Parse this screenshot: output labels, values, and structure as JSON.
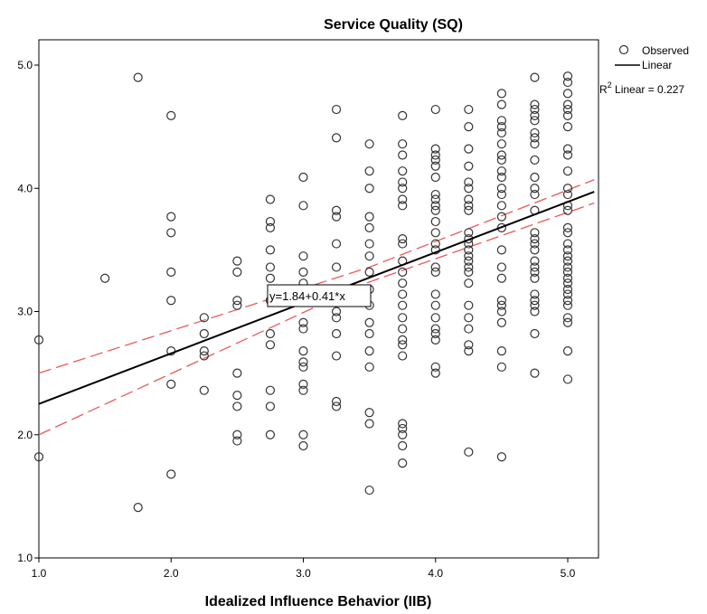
{
  "chart_data": {
    "type": "scatter",
    "title": "Service Quality (SQ)",
    "xlabel": "Idealized Influence Behavior (IIB)",
    "ylabel": "",
    "xlim": [
      1.0,
      5.2
    ],
    "ylim": [
      1.0,
      5.2
    ],
    "x_ticks": [
      "1.0",
      "2.0",
      "3.0",
      "4.0",
      "5.0"
    ],
    "y_ticks": [
      "1.0",
      "2.0",
      "3.0",
      "4.0",
      "5.0"
    ],
    "grid": false,
    "legend": {
      "placement": "top-right",
      "observed_label": "Observed",
      "linear_label": "Linear",
      "r2_prefix": "R",
      "r2_sup": "2",
      "r2_text": " Linear = 0.227"
    },
    "fit_equation": "y=1.84+0.41*x",
    "fit": {
      "intercept": 1.84,
      "slope": 0.41,
      "r2": 0.227
    },
    "ci_lower": [
      [
        1.0,
        2.0
      ],
      [
        3.5,
        3.24
      ],
      [
        5.2,
        3.88
      ]
    ],
    "ci_upper": [
      [
        1.0,
        2.5
      ],
      [
        3.5,
        3.36
      ],
      [
        5.2,
        4.07
      ]
    ],
    "colors": {
      "points": "#333333",
      "fit": "#000000",
      "ci": "#e85a5a"
    },
    "points": [
      [
        1.0,
        2.77
      ],
      [
        1.0,
        1.82
      ],
      [
        1.5,
        3.27
      ],
      [
        1.75,
        4.9
      ],
      [
        1.75,
        1.41
      ],
      [
        2.0,
        4.59
      ],
      [
        2.0,
        3.77
      ],
      [
        2.0,
        3.64
      ],
      [
        2.0,
        3.32
      ],
      [
        2.0,
        3.09
      ],
      [
        2.0,
        2.68
      ],
      [
        2.0,
        2.41
      ],
      [
        2.0,
        1.68
      ],
      [
        2.25,
        2.95
      ],
      [
        2.25,
        2.82
      ],
      [
        2.25,
        2.68
      ],
      [
        2.25,
        2.64
      ],
      [
        2.25,
        2.36
      ],
      [
        2.5,
        3.41
      ],
      [
        2.5,
        3.32
      ],
      [
        2.5,
        3.09
      ],
      [
        2.5,
        3.05
      ],
      [
        2.5,
        2.5
      ],
      [
        2.5,
        2.32
      ],
      [
        2.5,
        2.23
      ],
      [
        2.5,
        2.0
      ],
      [
        2.5,
        1.95
      ],
      [
        2.75,
        3.91
      ],
      [
        2.75,
        3.73
      ],
      [
        2.75,
        3.68
      ],
      [
        2.75,
        3.5
      ],
      [
        2.75,
        3.36
      ],
      [
        2.75,
        3.27
      ],
      [
        2.75,
        3.09
      ],
      [
        2.75,
        2.82
      ],
      [
        2.75,
        2.73
      ],
      [
        2.75,
        2.36
      ],
      [
        2.75,
        2.23
      ],
      [
        2.75,
        2.0
      ],
      [
        3.0,
        4.09
      ],
      [
        3.0,
        3.86
      ],
      [
        3.0,
        3.45
      ],
      [
        3.0,
        3.32
      ],
      [
        3.0,
        3.23
      ],
      [
        3.0,
        3.14
      ],
      [
        3.0,
        2.91
      ],
      [
        3.0,
        2.86
      ],
      [
        3.0,
        2.68
      ],
      [
        3.0,
        2.59
      ],
      [
        3.0,
        2.55
      ],
      [
        3.0,
        2.41
      ],
      [
        3.0,
        2.36
      ],
      [
        3.0,
        2.0
      ],
      [
        3.0,
        1.91
      ],
      [
        3.25,
        4.64
      ],
      [
        3.25,
        4.41
      ],
      [
        3.25,
        3.82
      ],
      [
        3.25,
        3.77
      ],
      [
        3.25,
        3.55
      ],
      [
        3.25,
        3.36
      ],
      [
        3.25,
        3.14
      ],
      [
        3.25,
        3.0
      ],
      [
        3.25,
        2.95
      ],
      [
        3.25,
        2.82
      ],
      [
        3.25,
        2.64
      ],
      [
        3.25,
        2.27
      ],
      [
        3.25,
        2.23
      ],
      [
        3.5,
        4.36
      ],
      [
        3.5,
        4.14
      ],
      [
        3.5,
        4.0
      ],
      [
        3.5,
        3.77
      ],
      [
        3.5,
        3.68
      ],
      [
        3.5,
        3.55
      ],
      [
        3.5,
        3.45
      ],
      [
        3.5,
        3.32
      ],
      [
        3.5,
        3.18
      ],
      [
        3.5,
        3.05
      ],
      [
        3.5,
        2.91
      ],
      [
        3.5,
        2.82
      ],
      [
        3.5,
        2.68
      ],
      [
        3.5,
        2.55
      ],
      [
        3.5,
        2.18
      ],
      [
        3.5,
        2.09
      ],
      [
        3.5,
        1.55
      ],
      [
        3.75,
        4.59
      ],
      [
        3.75,
        4.36
      ],
      [
        3.75,
        4.27
      ],
      [
        3.75,
        4.14
      ],
      [
        3.75,
        4.05
      ],
      [
        3.75,
        4.0
      ],
      [
        3.75,
        3.91
      ],
      [
        3.75,
        3.86
      ],
      [
        3.75,
        3.59
      ],
      [
        3.75,
        3.55
      ],
      [
        3.75,
        3.41
      ],
      [
        3.75,
        3.32
      ],
      [
        3.75,
        3.23
      ],
      [
        3.75,
        3.14
      ],
      [
        3.75,
        3.05
      ],
      [
        3.75,
        2.95
      ],
      [
        3.75,
        2.86
      ],
      [
        3.75,
        2.77
      ],
      [
        3.75,
        2.73
      ],
      [
        3.75,
        2.64
      ],
      [
        3.75,
        2.09
      ],
      [
        3.75,
        2.05
      ],
      [
        3.75,
        2.0
      ],
      [
        3.75,
        1.91
      ],
      [
        3.75,
        1.77
      ],
      [
        4.0,
        4.64
      ],
      [
        4.0,
        4.32
      ],
      [
        4.0,
        4.27
      ],
      [
        4.0,
        4.23
      ],
      [
        4.0,
        4.18
      ],
      [
        4.0,
        4.09
      ],
      [
        4.0,
        3.95
      ],
      [
        4.0,
        3.91
      ],
      [
        4.0,
        3.86
      ],
      [
        4.0,
        3.82
      ],
      [
        4.0,
        3.73
      ],
      [
        4.0,
        3.64
      ],
      [
        4.0,
        3.55
      ],
      [
        4.0,
        3.5
      ],
      [
        4.0,
        3.36
      ],
      [
        4.0,
        3.32
      ],
      [
        4.0,
        3.14
      ],
      [
        4.0,
        3.05
      ],
      [
        4.0,
        2.95
      ],
      [
        4.0,
        2.86
      ],
      [
        4.0,
        2.82
      ],
      [
        4.0,
        2.77
      ],
      [
        4.0,
        2.55
      ],
      [
        4.0,
        2.5
      ],
      [
        4.25,
        4.64
      ],
      [
        4.25,
        4.5
      ],
      [
        4.25,
        4.32
      ],
      [
        4.25,
        4.18
      ],
      [
        4.25,
        4.05
      ],
      [
        4.25,
        4.0
      ],
      [
        4.25,
        3.91
      ],
      [
        4.25,
        3.86
      ],
      [
        4.25,
        3.82
      ],
      [
        4.25,
        3.64
      ],
      [
        4.25,
        3.59
      ],
      [
        4.25,
        3.55
      ],
      [
        4.25,
        3.5
      ],
      [
        4.25,
        3.45
      ],
      [
        4.25,
        3.41
      ],
      [
        4.25,
        3.36
      ],
      [
        4.25,
        3.32
      ],
      [
        4.25,
        3.23
      ],
      [
        4.25,
        3.05
      ],
      [
        4.25,
        2.95
      ],
      [
        4.25,
        2.86
      ],
      [
        4.25,
        2.73
      ],
      [
        4.25,
        2.68
      ],
      [
        4.25,
        1.86
      ],
      [
        4.5,
        4.77
      ],
      [
        4.5,
        4.68
      ],
      [
        4.5,
        4.55
      ],
      [
        4.5,
        4.5
      ],
      [
        4.5,
        4.45
      ],
      [
        4.5,
        4.36
      ],
      [
        4.5,
        4.27
      ],
      [
        4.5,
        4.23
      ],
      [
        4.5,
        4.14
      ],
      [
        4.5,
        4.09
      ],
      [
        4.5,
        4.0
      ],
      [
        4.5,
        3.95
      ],
      [
        4.5,
        3.86
      ],
      [
        4.5,
        3.77
      ],
      [
        4.5,
        3.68
      ],
      [
        4.5,
        3.5
      ],
      [
        4.5,
        3.36
      ],
      [
        4.5,
        3.27
      ],
      [
        4.5,
        3.09
      ],
      [
        4.5,
        3.05
      ],
      [
        4.5,
        3.0
      ],
      [
        4.5,
        2.91
      ],
      [
        4.5,
        2.68
      ],
      [
        4.5,
        2.55
      ],
      [
        4.5,
        1.82
      ],
      [
        4.75,
        4.9
      ],
      [
        4.75,
        4.68
      ],
      [
        4.75,
        4.64
      ],
      [
        4.75,
        4.59
      ],
      [
        4.75,
        4.55
      ],
      [
        4.75,
        4.45
      ],
      [
        4.75,
        4.41
      ],
      [
        4.75,
        4.36
      ],
      [
        4.75,
        4.23
      ],
      [
        4.75,
        4.09
      ],
      [
        4.75,
        4.0
      ],
      [
        4.75,
        3.95
      ],
      [
        4.75,
        3.82
      ],
      [
        4.75,
        3.64
      ],
      [
        4.75,
        3.59
      ],
      [
        4.75,
        3.55
      ],
      [
        4.75,
        3.5
      ],
      [
        4.75,
        3.41
      ],
      [
        4.75,
        3.36
      ],
      [
        4.75,
        3.32
      ],
      [
        4.75,
        3.27
      ],
      [
        4.75,
        3.14
      ],
      [
        4.75,
        3.09
      ],
      [
        4.75,
        3.05
      ],
      [
        4.75,
        3.0
      ],
      [
        4.75,
        2.82
      ],
      [
        4.75,
        2.5
      ],
      [
        5.0,
        4.91
      ],
      [
        5.0,
        4.86
      ],
      [
        5.0,
        4.77
      ],
      [
        5.0,
        4.68
      ],
      [
        5.0,
        4.64
      ],
      [
        5.0,
        4.59
      ],
      [
        5.0,
        4.5
      ],
      [
        5.0,
        4.32
      ],
      [
        5.0,
        4.27
      ],
      [
        5.0,
        4.14
      ],
      [
        5.0,
        4.0
      ],
      [
        5.0,
        3.95
      ],
      [
        5.0,
        3.86
      ],
      [
        5.0,
        3.82
      ],
      [
        5.0,
        3.68
      ],
      [
        5.0,
        3.64
      ],
      [
        5.0,
        3.55
      ],
      [
        5.0,
        3.5
      ],
      [
        5.0,
        3.45
      ],
      [
        5.0,
        3.41
      ],
      [
        5.0,
        3.36
      ],
      [
        5.0,
        3.32
      ],
      [
        5.0,
        3.27
      ],
      [
        5.0,
        3.23
      ],
      [
        5.0,
        3.18
      ],
      [
        5.0,
        3.14
      ],
      [
        5.0,
        3.09
      ],
      [
        5.0,
        3.05
      ],
      [
        5.0,
        2.95
      ],
      [
        5.0,
        2.91
      ],
      [
        5.0,
        2.68
      ],
      [
        5.0,
        2.45
      ]
    ]
  }
}
